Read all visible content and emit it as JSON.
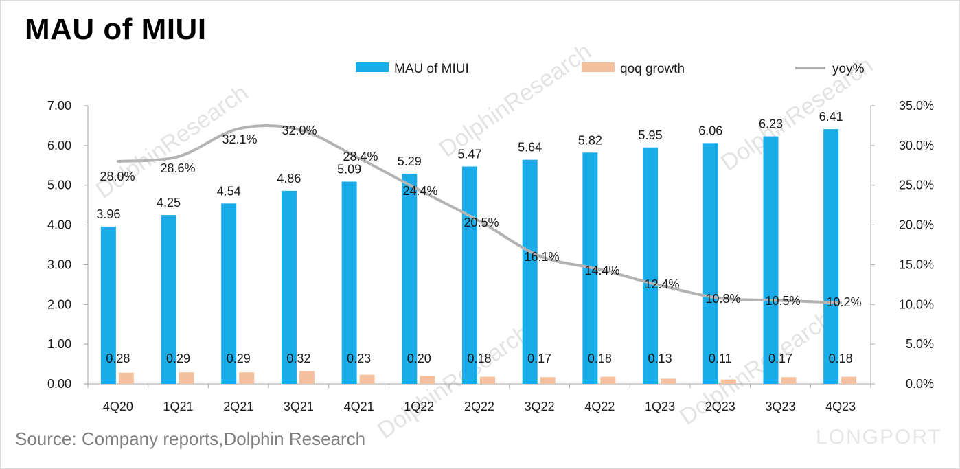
{
  "title": "MAU of MIUI",
  "source": "Source: Company reports,Dolphin Research",
  "watermark": "DolphinResearch",
  "brand": "LONGPORT",
  "colors": {
    "mau": "#1aace8",
    "qoq": "#f5c09e",
    "yoy": "#b3b3b3"
  },
  "legend": {
    "position": "top",
    "items": [
      "MAU of MIUI",
      "qoq growth",
      "yoy%"
    ]
  },
  "chart_data": {
    "type": "bar",
    "title": "MAU of MIUI",
    "xlabel": "",
    "ylabel": "",
    "categories": [
      "4Q20",
      "1Q21",
      "2Q21",
      "3Q21",
      "4Q21",
      "1Q22",
      "2Q22",
      "3Q22",
      "4Q22",
      "1Q23",
      "2Q23",
      "3Q23",
      "4Q23"
    ],
    "series": [
      {
        "name": "MAU of MIUI",
        "type": "bar",
        "axis": "left",
        "values": [
          3.96,
          4.25,
          4.54,
          4.86,
          5.09,
          5.29,
          5.47,
          5.64,
          5.82,
          5.95,
          6.06,
          6.23,
          6.41
        ],
        "labels": [
          "3.96",
          "4.25",
          "4.54",
          "4.86",
          "5.09",
          "5.29",
          "5.47",
          "5.64",
          "5.82",
          "5.95",
          "6.06",
          "6.23",
          "6.41"
        ]
      },
      {
        "name": "qoq growth",
        "type": "bar",
        "axis": "left",
        "values": [
          0.28,
          0.29,
          0.29,
          0.32,
          0.23,
          0.2,
          0.18,
          0.17,
          0.18,
          0.13,
          0.11,
          0.17,
          0.18
        ],
        "labels": [
          "0.28",
          "0.29",
          "0.29",
          "0.32",
          "0.23",
          "0.20",
          "0.18",
          "0.17",
          "0.18",
          "0.13",
          "0.11",
          "0.17",
          "0.18"
        ]
      },
      {
        "name": "yoy%",
        "type": "line",
        "axis": "right",
        "values": [
          28.0,
          28.6,
          32.1,
          32.0,
          28.4,
          24.4,
          20.5,
          16.1,
          14.4,
          12.4,
          10.8,
          10.5,
          10.2
        ],
        "labels": [
          "28.0%",
          "28.6%",
          "32.1%",
          "32.0%",
          "28.4%",
          "24.4%",
          "20.5%",
          "16.1%",
          "14.4%",
          "12.4%",
          "10.8%",
          "10.5%",
          "10.2%"
        ]
      }
    ],
    "ylim": [
      0,
      7
    ],
    "yticks": [
      "0.00",
      "1.00",
      "2.00",
      "3.00",
      "4.00",
      "5.00",
      "6.00",
      "7.00"
    ],
    "y2lim": [
      0,
      35
    ],
    "y2ticks": [
      "0.0%",
      "5.0%",
      "10.0%",
      "15.0%",
      "20.0%",
      "25.0%",
      "30.0%",
      "35.0%"
    ],
    "grid": false
  }
}
